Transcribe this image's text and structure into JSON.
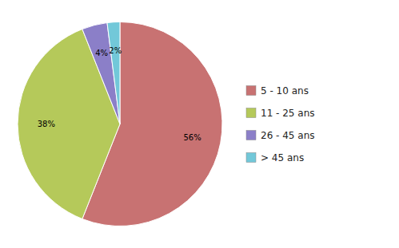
{
  "chart_data": {
    "type": "pie",
    "categories": [
      "5 - 10 ans",
      "11 - 25 ans",
      "26 - 45 ans",
      "> 45 ans"
    ],
    "values": [
      56,
      38,
      4,
      2
    ],
    "value_labels": [
      "56%",
      "38%",
      "4%",
      "2%"
    ],
    "colors": [
      "#c87272",
      "#b5c95a",
      "#8b7fc8",
      "#72c8d9"
    ],
    "data_labels": true,
    "legend": "right"
  }
}
